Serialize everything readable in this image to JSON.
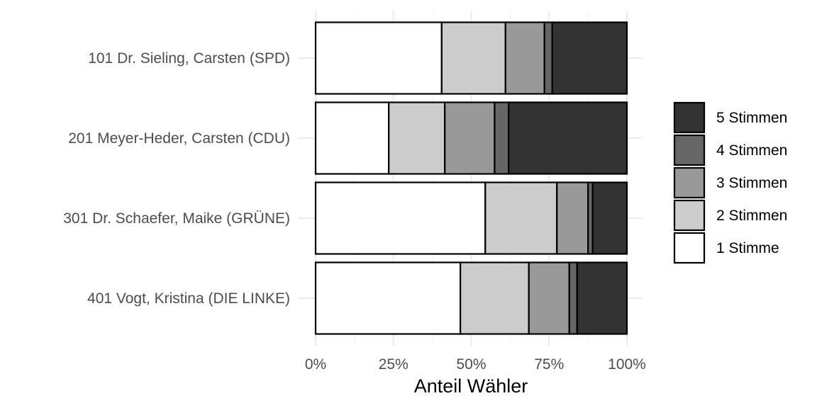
{
  "chart_data": {
    "type": "bar",
    "orientation": "horizontal",
    "stacked": "percent",
    "title": "",
    "xlabel": "Anteil Wähler",
    "ylabel": "",
    "xlim": [
      0,
      1
    ],
    "x_ticks": [
      0,
      0.25,
      0.5,
      0.75,
      1.0
    ],
    "x_tick_labels": [
      "0%",
      "25%",
      "50%",
      "75%",
      "100%"
    ],
    "grid": true,
    "legend_position": "right",
    "categories": [
      "101 Dr. Sieling, Carsten (SPD)",
      "201 Meyer-Heder, Carsten (CDU)",
      "301 Dr. Schaefer, Maike (GRÜNE)",
      "401 Vogt, Kristina (DIE LINKE)"
    ],
    "series": [
      {
        "name": "1 Stimme",
        "color": "#ffffff",
        "values": [
          0.405,
          0.235,
          0.545,
          0.465
        ]
      },
      {
        "name": "2 Stimmen",
        "color": "#cccccc",
        "values": [
          0.205,
          0.18,
          0.23,
          0.22
        ]
      },
      {
        "name": "3 Stimmen",
        "color": "#999999",
        "values": [
          0.125,
          0.16,
          0.1,
          0.13
        ]
      },
      {
        "name": "4 Stimmen",
        "color": "#666666",
        "values": [
          0.025,
          0.045,
          0.015,
          0.025
        ]
      },
      {
        "name": "5 Stimmen",
        "color": "#333333",
        "values": [
          0.24,
          0.38,
          0.11,
          0.16
        ]
      }
    ]
  }
}
